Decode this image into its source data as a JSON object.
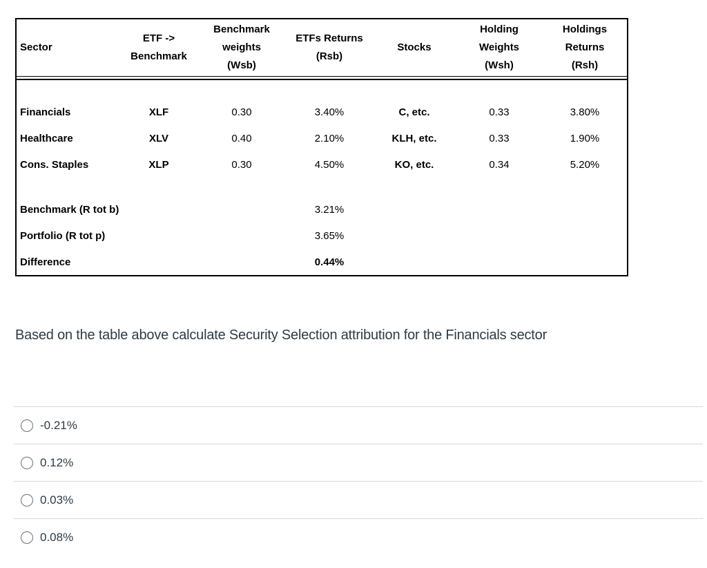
{
  "table": {
    "headers": [
      "Sector",
      "ETF ->\nBenchmark",
      "Benchmark\nweights\n(Wsb)",
      "ETFs Returns\n(Rsb)",
      "Stocks",
      "Holding\nWeights\n(Wsh)",
      "Holdings\nReturns\n(Rsh)"
    ],
    "rows": [
      {
        "sector": "Financials",
        "etf": "XLF",
        "wsb": "0.30",
        "rsb": "3.40%",
        "stocks": "C, etc.",
        "wsh": "0.33",
        "rsh": "3.80%"
      },
      {
        "sector": "Healthcare",
        "etf": "XLV",
        "wsb": "0.40",
        "rsb": "2.10%",
        "stocks": "KLH, etc.",
        "wsh": "0.33",
        "rsh": "1.90%"
      },
      {
        "sector": "Cons. Staples",
        "etf": "XLP",
        "wsb": "0.30",
        "rsb": "4.50%",
        "stocks": "KO, etc.",
        "wsh": "0.34",
        "rsh": "5.20%"
      }
    ],
    "summary": [
      {
        "label": "Benchmark (R tot b)",
        "value": "3.21%"
      },
      {
        "label": "Portfolio (R tot p)",
        "value": "3.65%"
      },
      {
        "label": "Difference",
        "value": "0.44%"
      }
    ]
  },
  "question": {
    "text": "Based on the table above calculate Security Selection attribution for the Financials sector"
  },
  "options": [
    {
      "label": "-0.21%"
    },
    {
      "label": "0.12%"
    },
    {
      "label": "0.03%"
    },
    {
      "label": "0.08%"
    }
  ],
  "colors": {
    "table_border": "#000000",
    "table_text": "#000000",
    "question_text": "#2d3b45",
    "divider": "#d9d9d9",
    "radio_border": "#6f6f6f",
    "background": "#ffffff"
  }
}
